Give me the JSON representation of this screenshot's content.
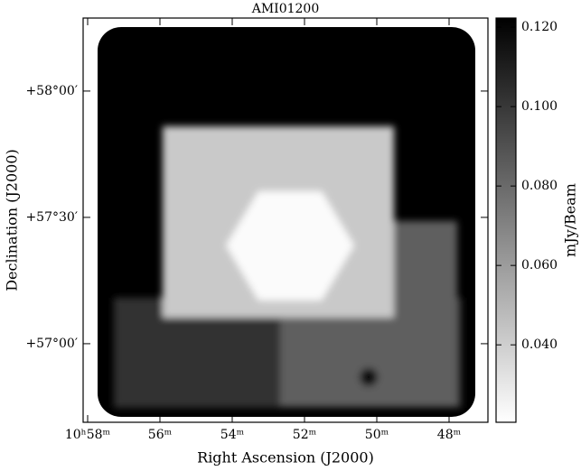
{
  "chart_data": {
    "type": "image",
    "title": "AMI01200",
    "x_label": "Right Ascension (J2000)",
    "y_label": "Declination (J2000)",
    "colorbar_label": "mJy/Beam",
    "xlim": [
      58.125,
      46.925
    ],
    "xticks": [
      {
        "value": 58,
        "label": "10ʰ58ᵐ"
      },
      {
        "value": 56,
        "label": "56ᵐ"
      },
      {
        "value": 54,
        "label": "54ᵐ"
      },
      {
        "value": 52,
        "label": "52ᵐ"
      },
      {
        "value": 50,
        "label": "50ᵐ"
      },
      {
        "value": 48,
        "label": "48ᵐ"
      }
    ],
    "ylim": [
      56.689,
      58.289
    ],
    "yticks": [
      {
        "value": 57,
        "label": "+57°00′"
      },
      {
        "value": 57.5,
        "label": "+57°30′"
      },
      {
        "value": 58,
        "label": "+58°00′"
      }
    ],
    "clim": [
      0.0205,
      0.1223
    ],
    "cticks": [
      {
        "value": 0.04,
        "label": "0.040"
      },
      {
        "value": 0.06,
        "label": "0.060"
      },
      {
        "value": 0.08,
        "label": "0.080"
      },
      {
        "value": 0.1,
        "label": "0.100"
      },
      {
        "value": 0.12,
        "label": "0.120"
      }
    ]
  }
}
